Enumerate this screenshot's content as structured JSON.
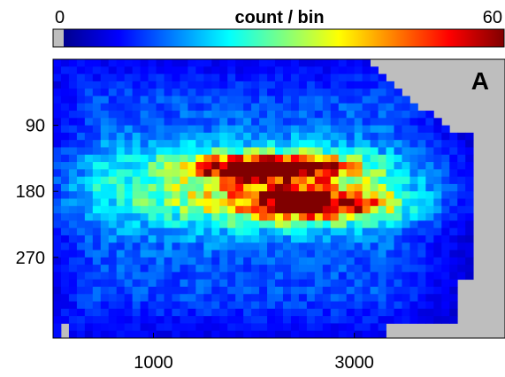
{
  "chart_data": {
    "type": "heatmap",
    "panel_label": "A",
    "colorbar": {
      "title": "count / bin",
      "min_label": "0",
      "max_label": "60",
      "min": 0,
      "max": 60,
      "colormap": "jet",
      "empty_color": "#bebebe"
    },
    "x_axis": {
      "range": [
        0,
        4500
      ],
      "ticks": [
        1000,
        3000
      ],
      "tick_labels": [
        "1000",
        "3000"
      ]
    },
    "y_axis": {
      "range": [
        0,
        380
      ],
      "inverted": true,
      "ticks": [
        90,
        180,
        270
      ],
      "tick_labels": [
        "90",
        "180",
        "270"
      ]
    },
    "grid": false,
    "bins": {
      "x_count": 57,
      "y_count": 38,
      "x_edges": [
        0,
        4500
      ],
      "y_edges": [
        0,
        380
      ]
    },
    "density_structure": {
      "empty_region": "top-right corner and right edge beyond ~4000 (gray)",
      "background_level": 12,
      "ridges": [
        {
          "x_center": 2200,
          "y_center": 148,
          "x_width": 700,
          "y_width": 16,
          "peak": 55
        },
        {
          "x_center": 2600,
          "y_center": 198,
          "x_width": 700,
          "y_width": 20,
          "peak": 42
        },
        {
          "x_center": 2000,
          "y_center": 175,
          "x_width": 1600,
          "y_width": 55,
          "peak": 25
        }
      ]
    }
  }
}
